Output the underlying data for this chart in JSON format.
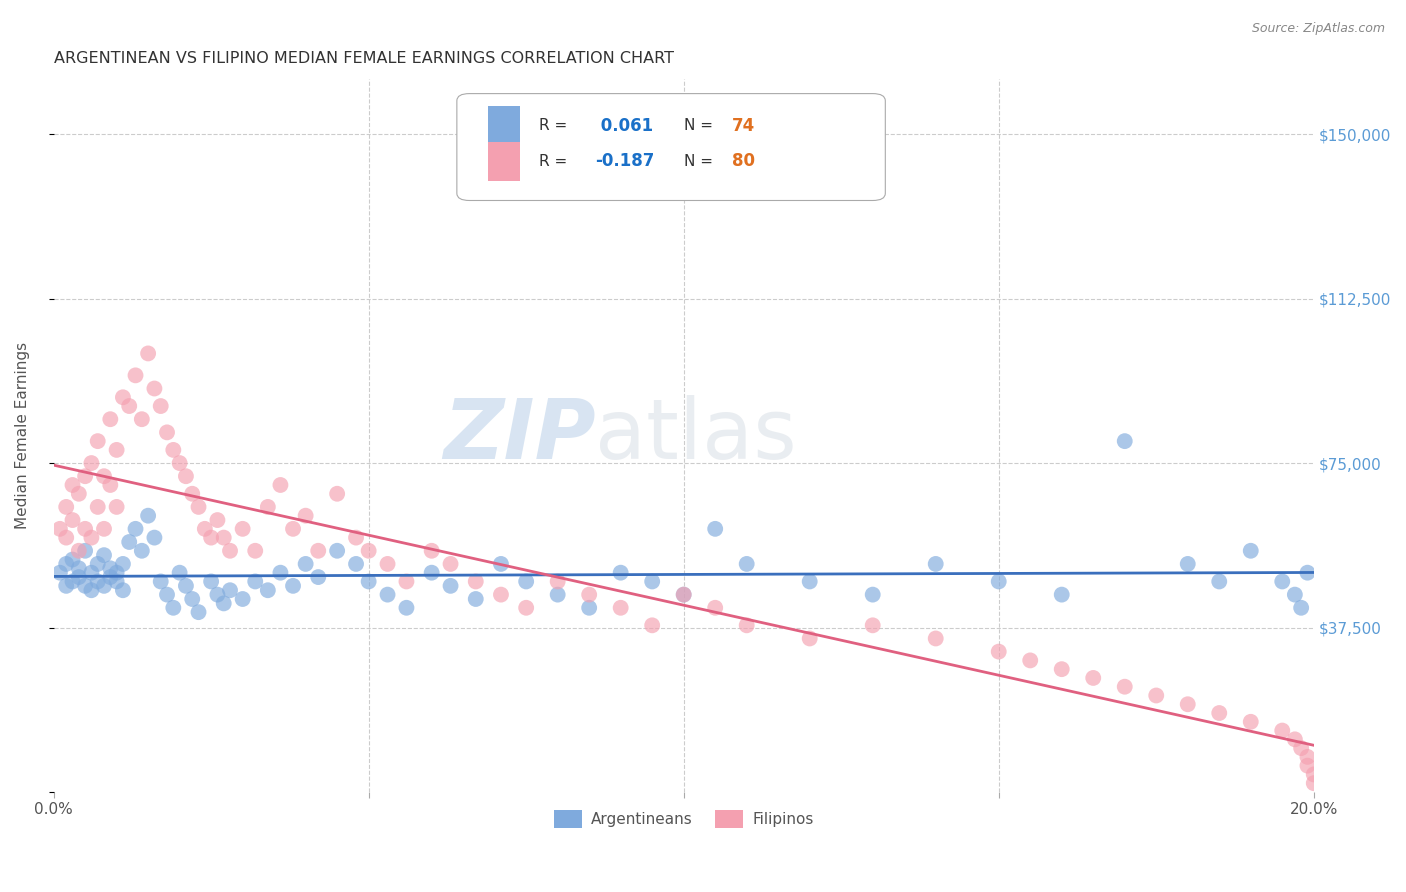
{
  "title": "ARGENTINEAN VS FILIPINO MEDIAN FEMALE EARNINGS CORRELATION CHART",
  "source": "Source: ZipAtlas.com",
  "ylabel": "Median Female Earnings",
  "xlim": [
    0.0,
    0.2
  ],
  "ylim": [
    0,
    162500
  ],
  "yticks": [
    0,
    37500,
    75000,
    112500,
    150000
  ],
  "ytick_labels": [
    "",
    "$37,500",
    "$75,000",
    "$112,500",
    "$150,000"
  ],
  "xticks": [
    0.0,
    0.05,
    0.1,
    0.15,
    0.2
  ],
  "xtick_labels": [
    "0.0%",
    "",
    "",
    "",
    "20.0%"
  ],
  "watermark": "ZIPatlas",
  "argentinean_color": "#7faadd",
  "filipino_color": "#f4a0b0",
  "arg_line_color": "#3a6fbd",
  "fil_line_color": "#e06080",
  "R_arg": 0.061,
  "N_arg": 74,
  "R_fil": -0.187,
  "N_fil": 80,
  "background_color": "#ffffff",
  "grid_color": "#cccccc",
  "title_color": "#333333",
  "axis_label_color": "#555555",
  "right_tick_color": "#5b9bd5",
  "legend_r_color": "#1a70c8",
  "legend_n_color": "#e07020",
  "arg_x": [
    0.001,
    0.002,
    0.002,
    0.003,
    0.003,
    0.004,
    0.004,
    0.005,
    0.005,
    0.006,
    0.006,
    0.007,
    0.007,
    0.008,
    0.008,
    0.009,
    0.009,
    0.01,
    0.01,
    0.011,
    0.011,
    0.012,
    0.013,
    0.014,
    0.015,
    0.016,
    0.017,
    0.018,
    0.019,
    0.02,
    0.021,
    0.022,
    0.023,
    0.025,
    0.026,
    0.027,
    0.028,
    0.03,
    0.032,
    0.034,
    0.036,
    0.038,
    0.04,
    0.042,
    0.045,
    0.048,
    0.05,
    0.053,
    0.056,
    0.06,
    0.063,
    0.067,
    0.071,
    0.075,
    0.08,
    0.085,
    0.09,
    0.095,
    0.1,
    0.105,
    0.11,
    0.12,
    0.13,
    0.14,
    0.15,
    0.16,
    0.17,
    0.18,
    0.185,
    0.19,
    0.195,
    0.197,
    0.198,
    0.199
  ],
  "arg_y": [
    50000,
    47000,
    52000,
    48000,
    53000,
    49000,
    51000,
    47000,
    55000,
    50000,
    46000,
    52000,
    48000,
    54000,
    47000,
    49000,
    51000,
    48000,
    50000,
    46000,
    52000,
    57000,
    60000,
    55000,
    63000,
    58000,
    48000,
    45000,
    42000,
    50000,
    47000,
    44000,
    41000,
    48000,
    45000,
    43000,
    46000,
    44000,
    48000,
    46000,
    50000,
    47000,
    52000,
    49000,
    55000,
    52000,
    48000,
    45000,
    42000,
    50000,
    47000,
    44000,
    52000,
    48000,
    45000,
    42000,
    50000,
    48000,
    45000,
    60000,
    52000,
    48000,
    45000,
    52000,
    48000,
    45000,
    80000,
    52000,
    48000,
    55000,
    48000,
    45000,
    42000,
    50000
  ],
  "fil_x": [
    0.001,
    0.002,
    0.002,
    0.003,
    0.003,
    0.004,
    0.004,
    0.005,
    0.005,
    0.006,
    0.006,
    0.007,
    0.007,
    0.008,
    0.008,
    0.009,
    0.009,
    0.01,
    0.01,
    0.011,
    0.012,
    0.013,
    0.014,
    0.015,
    0.016,
    0.017,
    0.018,
    0.019,
    0.02,
    0.021,
    0.022,
    0.023,
    0.024,
    0.025,
    0.026,
    0.027,
    0.028,
    0.03,
    0.032,
    0.034,
    0.036,
    0.038,
    0.04,
    0.042,
    0.045,
    0.048,
    0.05,
    0.053,
    0.056,
    0.06,
    0.063,
    0.067,
    0.071,
    0.075,
    0.08,
    0.085,
    0.09,
    0.095,
    0.1,
    0.105,
    0.11,
    0.12,
    0.13,
    0.14,
    0.15,
    0.155,
    0.16,
    0.165,
    0.17,
    0.175,
    0.18,
    0.185,
    0.19,
    0.195,
    0.197,
    0.198,
    0.199,
    0.199,
    0.2,
    0.2
  ],
  "fil_y": [
    60000,
    65000,
    58000,
    70000,
    62000,
    68000,
    55000,
    72000,
    60000,
    75000,
    58000,
    80000,
    65000,
    72000,
    60000,
    85000,
    70000,
    78000,
    65000,
    90000,
    88000,
    95000,
    85000,
    100000,
    92000,
    88000,
    82000,
    78000,
    75000,
    72000,
    68000,
    65000,
    60000,
    58000,
    62000,
    58000,
    55000,
    60000,
    55000,
    65000,
    70000,
    60000,
    63000,
    55000,
    68000,
    58000,
    55000,
    52000,
    48000,
    55000,
    52000,
    48000,
    45000,
    42000,
    48000,
    45000,
    42000,
    38000,
    45000,
    42000,
    38000,
    35000,
    38000,
    35000,
    32000,
    30000,
    28000,
    26000,
    24000,
    22000,
    20000,
    18000,
    16000,
    14000,
    12000,
    10000,
    8000,
    6000,
    4000,
    2000
  ]
}
